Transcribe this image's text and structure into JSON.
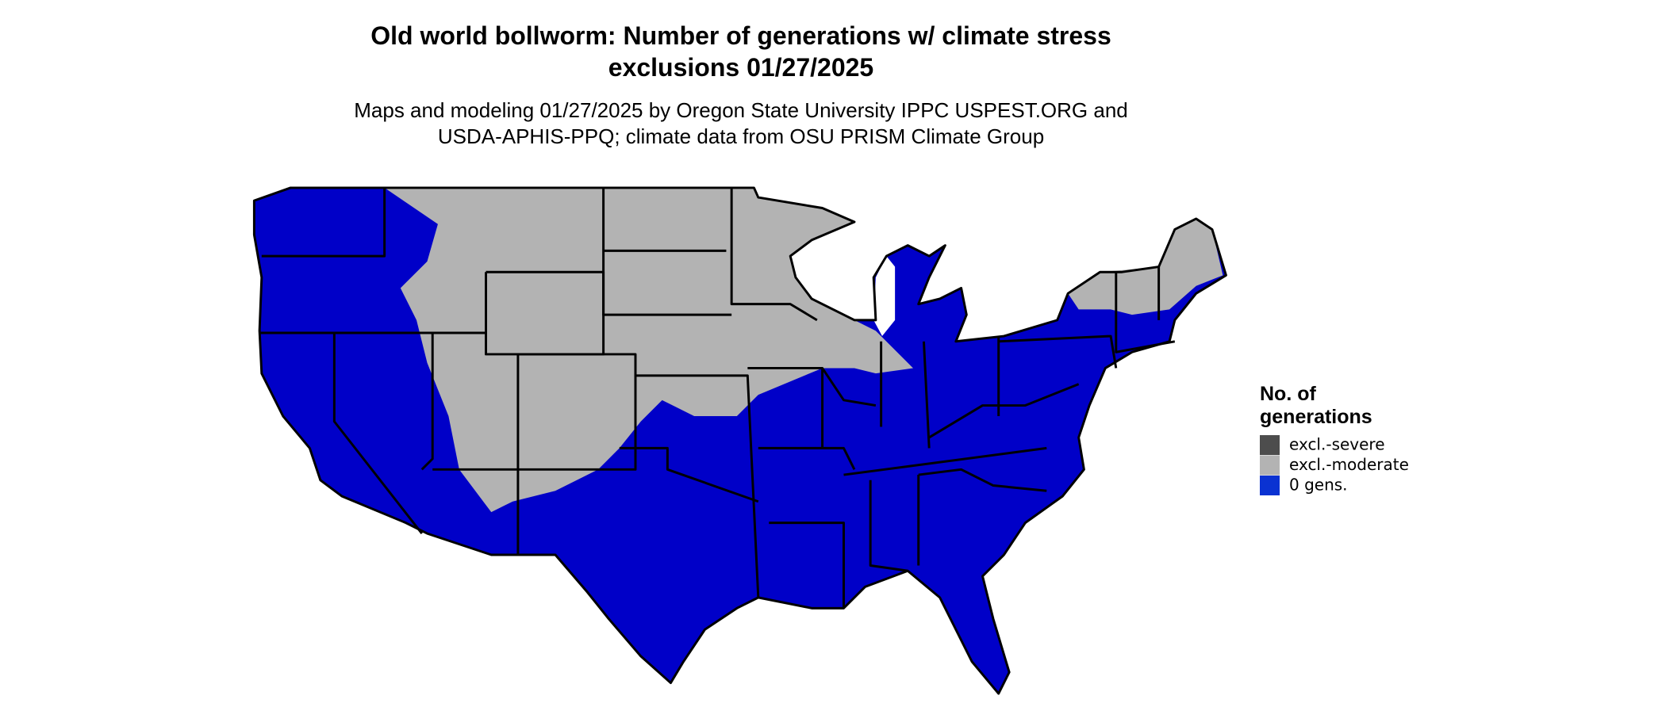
{
  "header": {
    "title": [
      "Old world bollworm: Number of generations w/ climate stress",
      "exclusions 01/27/2025"
    ],
    "subtitle": [
      "Maps and modeling 01/27/2025 by Oregon State University IPPC USPEST.ORG and",
      "USDA-APHIS-PPQ; climate data from OSU PRISM Climate Group"
    ]
  },
  "legend": {
    "title": [
      "No. of",
      "generations"
    ],
    "items": [
      {
        "label": "excl.-severe",
        "color": "#4d4d4d"
      },
      {
        "label": "excl.-moderate",
        "color": "#b3b3b3"
      },
      {
        "label": "0 gens.",
        "color": "#0a32d2"
      }
    ]
  }
}
